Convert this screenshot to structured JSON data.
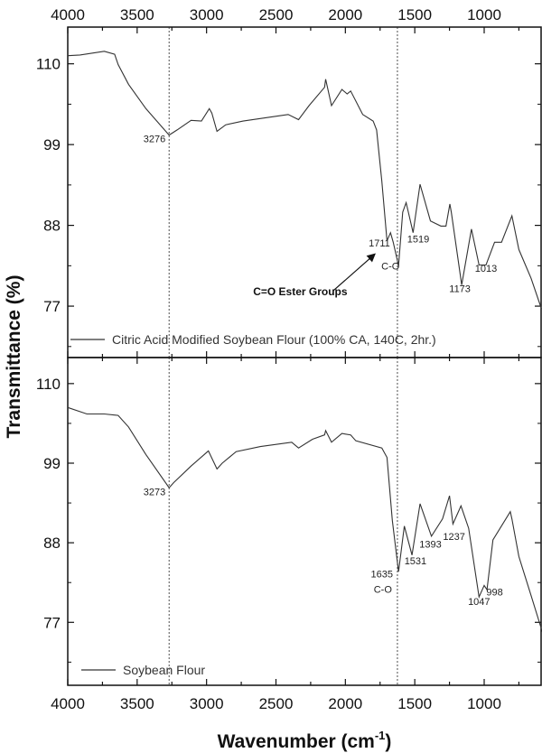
{
  "chart_data": {
    "type": "line",
    "xlabel": "Wavenumber (cm-1)",
    "xlabel_main": "Wavenumber (cm",
    "xlabel_sup": "-1",
    "xlabel_close": ")",
    "ylabel": "Transmittance (%)",
    "xlim": [
      4000,
      590
    ],
    "x_ticks": [
      4000,
      3500,
      3000,
      2500,
      2000,
      1500,
      1000
    ],
    "x_ticks_top_and_bottom": true,
    "grid": false,
    "reference_lines_x": [
      3270,
      1625
    ],
    "line_color": "#333333",
    "panels": [
      {
        "ylim": [
          70,
          115
        ],
        "y_ticks": [
          110,
          99,
          88,
          77
        ],
        "series": [
          {
            "name": "Citric Acid Modified Soybean Flour (100% CA, 140C, 2hr.)",
            "x": [
              4000,
              3912,
              3737,
              3662,
              3637,
              3562,
              3437,
              3270,
              3212,
              3112,
              3037,
              2980,
              2962,
              2925,
              2862,
              2737,
              2412,
              2337,
              2262,
              2150,
              2142,
              2100,
              2025,
              1987,
              1962,
              1875,
              1800,
              1775,
              1737,
              1700,
              1675,
              1655,
              1617,
              1587,
              1562,
              1512,
              1462,
              1387,
              1312,
              1275,
              1247,
              1237,
              1162,
              1092,
              1037,
              987,
              925,
              875,
              800,
              750,
              662,
              587
            ],
            "y": [
              111.1,
              111.2,
              111.7,
              111.3,
              109.9,
              107.2,
              103.9,
              100.3,
              101.0,
              102.3,
              102.2,
              103.9,
              103.3,
              100.8,
              101.7,
              102.2,
              103.1,
              102.4,
              104.3,
              106.8,
              107.9,
              104.3,
              106.5,
              105.9,
              106.3,
              103.1,
              102.2,
              101.0,
              94.0,
              85.9,
              87.0,
              85.7,
              82.5,
              89.8,
              91.1,
              87.0,
              93.6,
              88.6,
              87.9,
              87.9,
              90.9,
              89.8,
              79.9,
              87.5,
              82.6,
              82.6,
              85.7,
              85.7,
              89.3,
              84.7,
              80.8,
              76.6
            ]
          }
        ],
        "legend": "bottom-left",
        "annotations": [
          {
            "text": "3276",
            "x": 3375,
            "y": 99.3
          },
          {
            "text": "1711",
            "x": 1755,
            "y": 85.1
          },
          {
            "text": "C-O",
            "x": 1675,
            "y": 82.0
          },
          {
            "text": "1519",
            "x": 1475,
            "y": 85.7
          },
          {
            "text": "1173",
            "x": 1175,
            "y": 78.9
          },
          {
            "text": "1013",
            "x": 987,
            "y": 81.7
          }
        ],
        "callout": {
          "text": "C=O Ester Groups",
          "x": 2325,
          "y": 78.5,
          "arrow_from": [
            2087,
            79.1
          ],
          "arrow_to": [
            1787,
            84.1
          ]
        }
      },
      {
        "ylim": [
          68.3,
          113.6
        ],
        "y_ticks": [
          110,
          99,
          88,
          77
        ],
        "series": [
          {
            "name": "Soybean Flour",
            "x": [
              4000,
              3862,
              3737,
              3637,
              3562,
              3437,
              3270,
              3237,
              3112,
              2987,
              2925,
              2887,
              2787,
              2612,
              2387,
              2337,
              2237,
              2150,
              2142,
              2100,
              2025,
              1962,
              1925,
              1737,
              1700,
              1662,
              1617,
              1575,
              1520,
              1462,
              1380,
              1300,
              1250,
              1225,
              1167,
              1112,
              1037,
              1000,
              980,
              937,
              812,
              800,
              750,
              662,
              575
            ],
            "y": [
              106.7,
              105.8,
              105.8,
              105.6,
              104.0,
              100.2,
              95.6,
              96.3,
              98.6,
              100.7,
              98.2,
              99.0,
              100.6,
              101.3,
              101.9,
              101.1,
              102.3,
              102.9,
              103.5,
              101.9,
              103.1,
              102.9,
              102.1,
              101.1,
              99.8,
              91.1,
              84.0,
              90.3,
              86.3,
              93.4,
              88.9,
              91.3,
              94.5,
              90.6,
              93.1,
              90.0,
              80.5,
              82.1,
              81.5,
              88.4,
              92.3,
              91.3,
              86.1,
              80.7,
              75.3
            ]
          }
        ],
        "legend": "bottom-left",
        "annotations": [
          {
            "text": "3273",
            "x": 3375,
            "y": 94.6
          },
          {
            "text": "1635",
            "x": 1737,
            "y": 83.2
          },
          {
            "text": "C-O",
            "x": 1730,
            "y": 81.1
          },
          {
            "text": "1531",
            "x": 1495,
            "y": 85.0
          },
          {
            "text": "1393",
            "x": 1387,
            "y": 87.3
          },
          {
            "text": "1237",
            "x": 1217,
            "y": 88.4
          },
          {
            "text": "1047",
            "x": 1037,
            "y": 79.4
          },
          {
            "text": "998",
            "x": 925,
            "y": 80.7
          }
        ]
      }
    ]
  }
}
